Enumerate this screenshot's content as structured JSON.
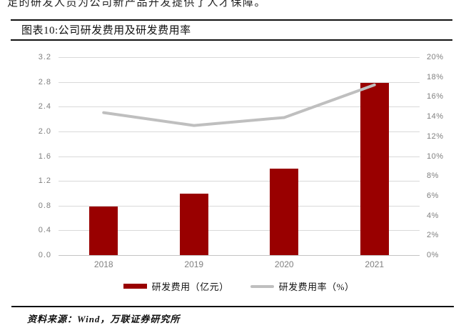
{
  "page": {
    "top_paragraph_fragment": "足的研发人员为公司新产品开发提供了人才保障。",
    "figure_label": "图表10:公司研发费用及研发费用率",
    "source_note": "资料来源：Wind，万联证券研究所"
  },
  "chart_data": {
    "type": "bar",
    "subtype": "combo-bar-line-dual-axis",
    "title": "公司研发费用及研发费用率",
    "categories": [
      "2018",
      "2019",
      "2020",
      "2021"
    ],
    "series": [
      {
        "name": "研发费用（亿元）",
        "type": "bar",
        "axis": "left",
        "color": "#990000",
        "values": [
          0.79,
          0.99,
          1.4,
          2.78
        ]
      },
      {
        "name": "研发费用率（%）",
        "type": "line",
        "axis": "right",
        "color": "#bfbfbf",
        "values": [
          14.4,
          13.1,
          13.9,
          17.2
        ]
      }
    ],
    "left_axis": {
      "min": 0,
      "max": 3.2,
      "step": 0.4,
      "tick_labels": [
        "0.0",
        "0.4",
        "0.8",
        "1.2",
        "1.6",
        "2.0",
        "2.4",
        "2.8",
        "3.2"
      ]
    },
    "right_axis": {
      "min": 0,
      "max": 20,
      "step": 2,
      "tick_labels": [
        "0%",
        "2%",
        "4%",
        "6%",
        "8%",
        "10%",
        "12%",
        "14%",
        "16%",
        "18%",
        "20%"
      ]
    },
    "legend_position": "bottom",
    "grid": true,
    "grid_color": "#d9d9d9"
  }
}
